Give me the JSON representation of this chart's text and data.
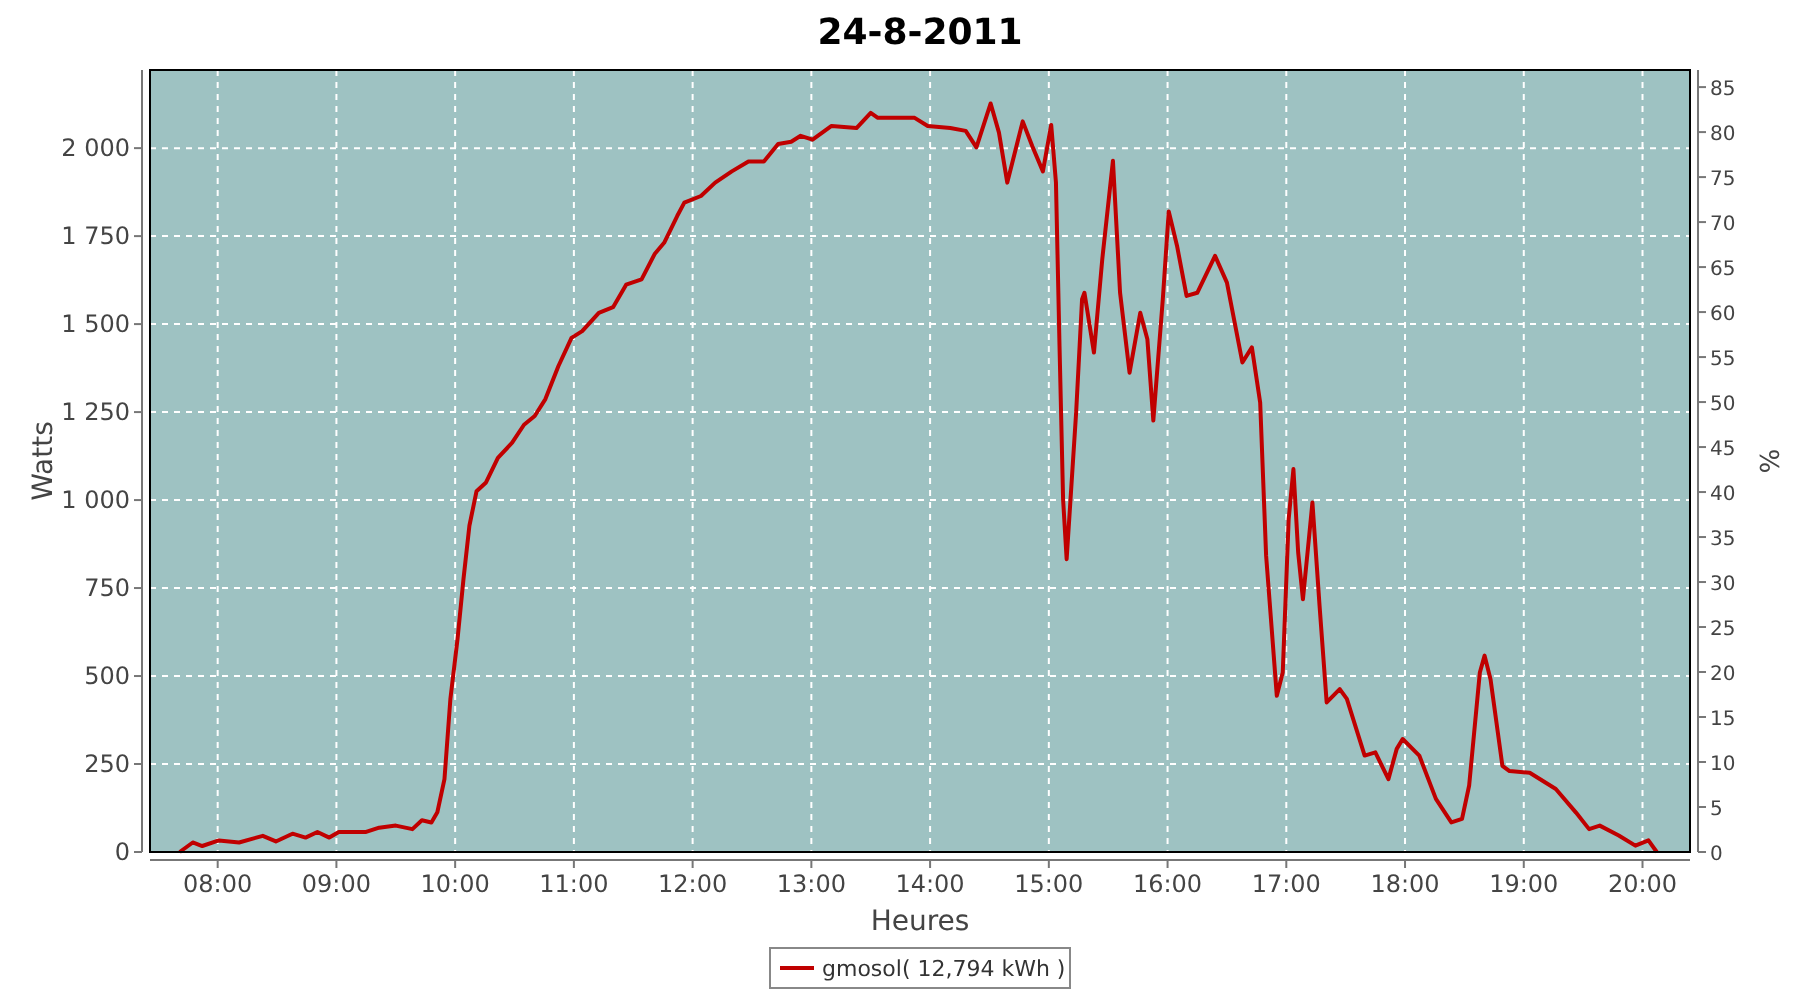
{
  "chart_data": {
    "type": "line",
    "title": "24-8-2011",
    "xlabel": "Heures",
    "ylabel": "Watts",
    "y2label": "%",
    "xlim": [
      7.43,
      20.4
    ],
    "ylim": [
      0,
      2222
    ],
    "y2lim": [
      0,
      86.9
    ],
    "xticks": [
      {
        "value": 8,
        "label": "08:00"
      },
      {
        "value": 9,
        "label": "09:00"
      },
      {
        "value": 10,
        "label": "10:00"
      },
      {
        "value": 11,
        "label": "11:00"
      },
      {
        "value": 12,
        "label": "12:00"
      },
      {
        "value": 13,
        "label": "13:00"
      },
      {
        "value": 14,
        "label": "14:00"
      },
      {
        "value": 15,
        "label": "15:00"
      },
      {
        "value": 16,
        "label": "16:00"
      },
      {
        "value": 17,
        "label": "17:00"
      },
      {
        "value": 18,
        "label": "18:00"
      },
      {
        "value": 19,
        "label": "19:00"
      },
      {
        "value": 20,
        "label": "20:00"
      }
    ],
    "yticks": [
      0,
      250,
      500,
      750,
      {
        "value": 1000,
        "label": "1 000"
      },
      {
        "value": 1250,
        "label": "1 250"
      },
      {
        "value": 1500,
        "label": "1 500"
      },
      {
        "value": 1750,
        "label": "1 750"
      },
      {
        "value": 2000,
        "label": "2 000"
      }
    ],
    "y2ticks": [
      0,
      5,
      10,
      15,
      20,
      25,
      30,
      35,
      40,
      45,
      50,
      55,
      60,
      65,
      70,
      75,
      80,
      85
    ],
    "grid": true,
    "legend": "bottom",
    "series": [
      {
        "name": "gmosol( 12,794 kWh )",
        "color": "#c00000",
        "x": [
          7.68,
          7.79,
          7.87,
          8.01,
          8.18,
          8.38,
          8.49,
          8.63,
          8.74,
          8.84,
          8.94,
          9.02,
          9.25,
          9.36,
          9.5,
          9.64,
          9.72,
          9.8,
          9.85,
          9.91,
          9.96,
          10.02,
          10.07,
          10.12,
          10.18,
          10.26,
          10.36,
          10.48,
          10.58,
          10.67,
          10.76,
          10.87,
          10.98,
          11.07,
          11.21,
          11.33,
          11.44,
          11.57,
          11.68,
          11.76,
          11.87,
          11.93,
          12.07,
          12.19,
          12.33,
          12.47,
          12.6,
          12.72,
          12.83,
          12.91,
          13.01,
          13.17,
          13.38,
          13.5,
          13.56,
          13.87,
          13.98,
          14.17,
          14.3,
          14.39,
          14.51,
          14.58,
          14.65,
          14.78,
          14.86,
          14.95,
          15.02,
          15.06,
          15.09,
          15.12,
          15.15,
          15.23,
          15.28,
          15.3,
          15.38,
          15.45,
          15.54,
          15.6,
          15.68,
          15.77,
          15.83,
          15.88,
          15.96,
          16.01,
          16.08,
          16.16,
          16.25,
          16.4,
          16.5,
          16.63,
          16.71,
          16.78,
          16.83,
          16.92,
          16.97,
          17.02,
          17.06,
          17.1,
          17.14,
          17.19,
          17.22,
          17.28,
          17.34,
          17.45,
          17.51,
          17.66,
          17.75,
          17.86,
          17.93,
          17.98,
          18.12,
          18.26,
          18.39,
          18.48,
          18.54,
          18.63,
          18.67,
          18.72,
          18.82,
          18.88,
          19.05,
          19.27,
          19.44,
          19.55,
          19.64,
          19.8,
          19.94,
          20.05,
          20.12
        ],
        "values": [
          0,
          27,
          17,
          33,
          27,
          46,
          30,
          52,
          41,
          57,
          41,
          57,
          57,
          69,
          75,
          65,
          90,
          84,
          113,
          207,
          435,
          605,
          775,
          927,
          1025,
          1050,
          1120,
          1163,
          1214,
          1239,
          1287,
          1381,
          1461,
          1480,
          1532,
          1548,
          1612,
          1627,
          1699,
          1731,
          1807,
          1845,
          1864,
          1902,
          1934,
          1962,
          1962,
          2012,
          2018,
          2035,
          2024,
          2063,
          2057,
          2100,
          2086,
          2086,
          2063,
          2057,
          2049,
          2002,
          2127,
          2044,
          1902,
          2076,
          2006,
          1934,
          2066,
          1902,
          1438,
          1003,
          832,
          1249,
          1571,
          1589,
          1419,
          1684,
          1964,
          1589,
          1362,
          1532,
          1457,
          1226,
          1571,
          1820,
          1722,
          1580,
          1589,
          1694,
          1618,
          1391,
          1434,
          1277,
          842,
          444,
          510,
          946,
          1088,
          851,
          718,
          889,
          993,
          700,
          425,
          463,
          435,
          274,
          283,
          207,
          293,
          321,
          274,
          151,
          84,
          94,
          189,
          510,
          558,
          491,
          245,
          230,
          225,
          179,
          112,
          65,
          75,
          47,
          18,
          33,
          0
        ]
      }
    ]
  }
}
